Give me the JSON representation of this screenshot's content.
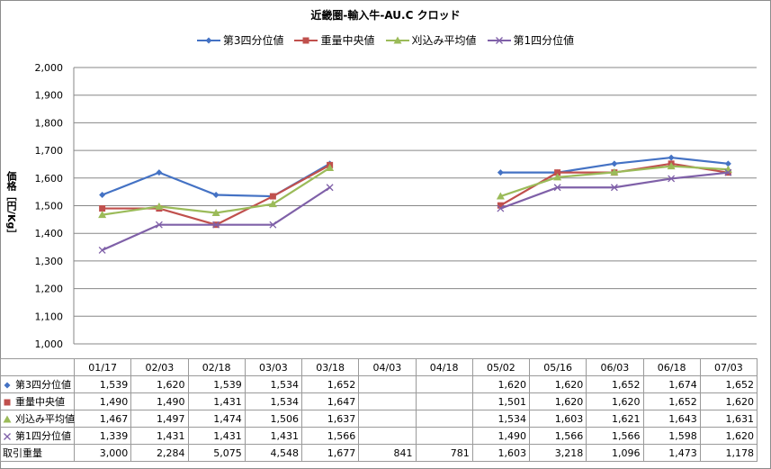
{
  "chart_data": {
    "type": "line",
    "title": "近畿圏-輸入牛-AU.C クロッド",
    "ylabel": "価格［円/Kg］",
    "ylim": [
      1000,
      2000
    ],
    "ytick_step": 100,
    "ytick_labels": [
      "1,000",
      "1,100",
      "1,200",
      "1,300",
      "1,400",
      "1,500",
      "1,600",
      "1,700",
      "1,800",
      "1,900",
      "2,000"
    ],
    "grid": true,
    "legend_position": "top",
    "categories": [
      "01/17",
      "02/03",
      "02/18",
      "03/03",
      "03/18",
      "04/03",
      "04/18",
      "05/02",
      "05/16",
      "06/03",
      "06/18",
      "07/03"
    ],
    "series": [
      {
        "name": "第3四分位値",
        "color": "#4472C4",
        "marker": "diamond",
        "values": [
          1539,
          1620,
          1539,
          1534,
          1652,
          null,
          null,
          1620,
          1620,
          1652,
          1674,
          1652
        ],
        "labels": [
          "1,539",
          "1,620",
          "1,539",
          "1,534",
          "1,652",
          "",
          "",
          "1,620",
          "1,620",
          "1,652",
          "1,674",
          "1,652"
        ]
      },
      {
        "name": "重量中央値",
        "color": "#C0504D",
        "marker": "square",
        "values": [
          1490,
          1490,
          1431,
          1534,
          1647,
          null,
          null,
          1501,
          1620,
          1620,
          1652,
          1620
        ],
        "labels": [
          "1,490",
          "1,490",
          "1,431",
          "1,534",
          "1,647",
          "",
          "",
          "1,501",
          "1,620",
          "1,620",
          "1,652",
          "1,620"
        ]
      },
      {
        "name": "刈込み平均値",
        "color": "#9BBB59",
        "marker": "triangle",
        "values": [
          1467,
          1497,
          1474,
          1506,
          1637,
          null,
          null,
          1534,
          1603,
          1621,
          1643,
          1631
        ],
        "labels": [
          "1,467",
          "1,497",
          "1,474",
          "1,506",
          "1,637",
          "",
          "",
          "1,534",
          "1,603",
          "1,621",
          "1,643",
          "1,631"
        ]
      },
      {
        "name": "第1四分位値",
        "color": "#7F60A8",
        "marker": "x",
        "values": [
          1339,
          1431,
          1431,
          1431,
          1566,
          null,
          null,
          1490,
          1566,
          1566,
          1598,
          1620
        ],
        "labels": [
          "1,339",
          "1,431",
          "1,431",
          "1,431",
          "1,566",
          "",
          "",
          "1,490",
          "1,566",
          "1,566",
          "1,598",
          "1,620"
        ]
      }
    ],
    "volume": {
      "name": "取引重量",
      "labels": [
        "3,000",
        "2,284",
        "5,075",
        "4,548",
        "1,677",
        "841",
        "781",
        "1,603",
        "3,218",
        "1,096",
        "1,473",
        "1,178"
      ]
    }
  }
}
